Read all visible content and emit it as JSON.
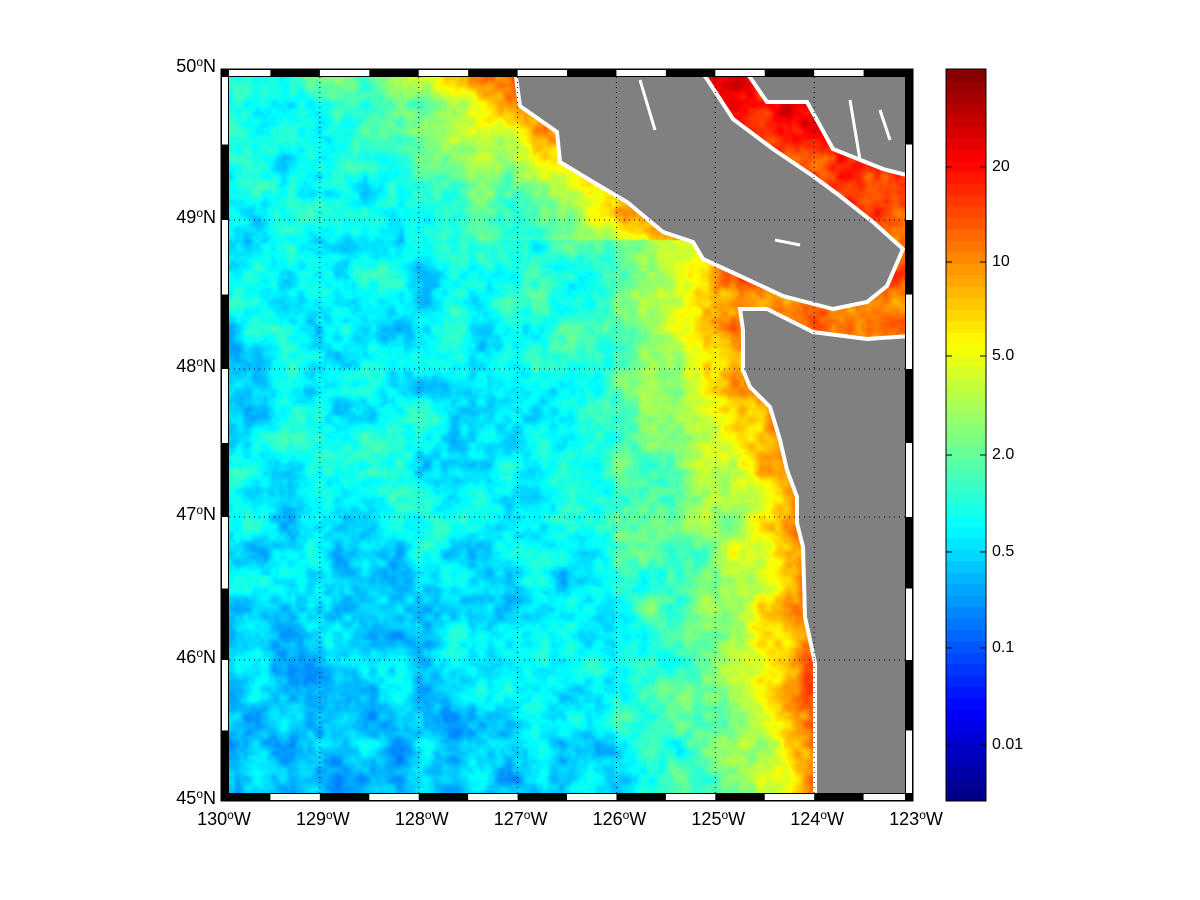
{
  "map": {
    "lat_labels": [
      {
        "deg": "50",
        "hem": "N"
      },
      {
        "deg": "49",
        "hem": "N"
      },
      {
        "deg": "48",
        "hem": "N"
      },
      {
        "deg": "47",
        "hem": "N"
      },
      {
        "deg": "46",
        "hem": "N"
      },
      {
        "deg": "45",
        "hem": "N"
      }
    ],
    "lon_labels": [
      {
        "deg": "130",
        "hem": "W"
      },
      {
        "deg": "129",
        "hem": "W"
      },
      {
        "deg": "128",
        "hem": "W"
      },
      {
        "deg": "127",
        "hem": "W"
      },
      {
        "deg": "126",
        "hem": "W"
      },
      {
        "deg": "125",
        "hem": "W"
      },
      {
        "deg": "124",
        "hem": "W"
      },
      {
        "deg": "123",
        "hem": "W"
      }
    ],
    "lon_range": [
      -130,
      -123
    ],
    "lat_range": [
      45,
      50
    ],
    "degree_symbol": "o",
    "land_color": "#808080",
    "coast_color": "#ffffff",
    "grid": "dotted"
  },
  "colorbar": {
    "colormap": "jet",
    "ticks": [
      "20",
      "10",
      "5.0",
      "2.0",
      "0.5",
      "0.1",
      "0.01"
    ]
  }
}
